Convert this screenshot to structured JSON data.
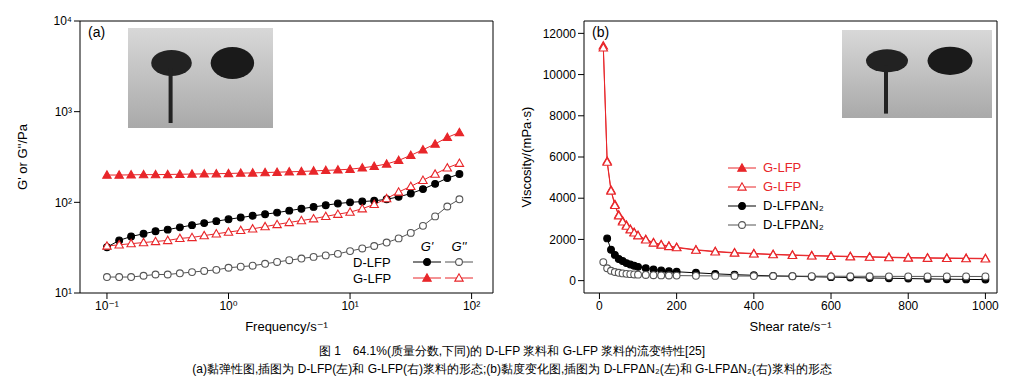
{
  "chart_data": [
    {
      "type": "line",
      "panel": "(a)",
      "x_label": "Frequency/s⁻¹",
      "y_label": "G' or G''/Pa",
      "log": true,
      "xlim": [
        0.06,
        150
      ],
      "xticks": [
        {
          "value": 0.1,
          "label": "10⁻¹"
        },
        {
          "value": 1,
          "label": "10⁰"
        },
        {
          "value": 10,
          "label": "10¹"
        },
        {
          "value": 100,
          "label": "10²"
        }
      ],
      "ylim": [
        10,
        10000
      ],
      "yticks": [
        {
          "value": 10,
          "label": "10¹"
        },
        {
          "value": 100,
          "label": "10²"
        },
        {
          "value": 1000,
          "label": "10³"
        },
        {
          "value": 10000,
          "label": "10⁴"
        }
      ],
      "legend_columns": [
        "G'",
        "G''"
      ],
      "x": [
        0.1,
        0.126,
        0.158,
        0.2,
        0.251,
        0.316,
        0.398,
        0.501,
        0.631,
        0.794,
        1,
        1.26,
        1.58,
        2,
        2.51,
        3.16,
        3.98,
        5.01,
        6.31,
        7.94,
        10,
        12.6,
        15.8,
        20,
        25.1,
        31.6,
        39.8,
        50.1,
        63.1,
        79.4
      ],
      "series": [
        {
          "name": "D-LFP",
          "modulus": "G'",
          "color": "#000000",
          "marker": "circle",
          "values": [
            32,
            38,
            42,
            45,
            48,
            50,
            53,
            56,
            59,
            62,
            65,
            68,
            71,
            74,
            77,
            81,
            85,
            89,
            93,
            97,
            100,
            102,
            104,
            108,
            115,
            125,
            140,
            160,
            185,
            205
          ]
        },
        {
          "name": "D-LFP",
          "modulus": "G''",
          "color": "#555555",
          "marker": "open_circle",
          "values": [
            15,
            15,
            15,
            15.5,
            16,
            16,
            16.5,
            17,
            17.5,
            18,
            19,
            19.5,
            20,
            21,
            22,
            23,
            24,
            25,
            26,
            27,
            29,
            31,
            33,
            36,
            40,
            46,
            55,
            70,
            90,
            108
          ]
        },
        {
          "name": "G-LFP",
          "modulus": "G'",
          "color": "#e8262a",
          "marker": "triangle",
          "values": [
            200,
            200,
            201,
            202,
            202,
            203,
            204,
            205,
            206,
            207,
            208,
            210,
            211,
            213,
            215,
            217,
            219,
            222,
            225,
            228,
            232,
            240,
            250,
            265,
            290,
            330,
            380,
            440,
            520,
            590
          ]
        },
        {
          "name": "G-LFP",
          "modulus": "G''",
          "color": "#e8262a",
          "marker": "open_triangle",
          "values": [
            33,
            34,
            35,
            36,
            37,
            38,
            40,
            41,
            43,
            45,
            47,
            49,
            51,
            54,
            57,
            60,
            63,
            66,
            70,
            74,
            78,
            85,
            95,
            110,
            130,
            150,
            175,
            205,
            240,
            270
          ]
        }
      ]
    },
    {
      "type": "line",
      "panel": "(b)",
      "x_label": "Shear rate/s⁻¹",
      "y_label": "Viscosity/(mPa·s)",
      "xlim": [
        -40,
        1030
      ],
      "xticks": [
        0,
        200,
        400,
        600,
        800,
        1000
      ],
      "ylim": [
        -600,
        12600
      ],
      "yticks": [
        0,
        2000,
        4000,
        6000,
        8000,
        10000,
        12000
      ],
      "x": [
        10,
        20,
        30,
        40,
        50,
        60,
        70,
        80,
        90,
        100,
        120,
        140,
        160,
        180,
        200,
        250,
        300,
        350,
        400,
        450,
        500,
        550,
        600,
        650,
        700,
        750,
        800,
        850,
        900,
        950,
        1000
      ],
      "series": [
        {
          "name": "G-LFP",
          "color": "#e8262a",
          "marker": "triangle",
          "values": [
            11400,
            5800,
            4400,
            3700,
            3200,
            2900,
            2700,
            2500,
            2350,
            2200,
            2000,
            1850,
            1750,
            1680,
            1620,
            1500,
            1420,
            1360,
            1320,
            1280,
            1250,
            1220,
            1200,
            1180,
            1160,
            1140,
            1120,
            1110,
            1100,
            1090,
            1080
          ]
        },
        {
          "name": "G-LFP",
          "color": "#e8262a",
          "marker": "open_triangle",
          "values": [
            11300,
            5750,
            4350,
            3650,
            3150,
            2850,
            2650,
            2470,
            2320,
            2180,
            1980,
            1830,
            1730,
            1660,
            1600,
            1480,
            1400,
            1340,
            1300,
            1260,
            1230,
            1200,
            1180,
            1160,
            1140,
            1120,
            1100,
            1090,
            1080,
            1070,
            1060
          ]
        },
        {
          "name": "D-LFPΔN₂",
          "color": "#000000",
          "marker": "circle",
          "values": [
            null,
            2050,
            1500,
            1250,
            1050,
            950,
            850,
            780,
            720,
            670,
            600,
            540,
            500,
            460,
            430,
            380,
            330,
            290,
            260,
            230,
            210,
            190,
            170,
            150,
            130,
            115,
            100,
            85,
            70,
            60,
            50
          ]
        },
        {
          "name": "D-LFPΔN₂",
          "color": "#555555",
          "marker": "open_circle",
          "values": [
            900,
            600,
            480,
            420,
            380,
            350,
            330,
            315,
            300,
            290,
            275,
            265,
            255,
            250,
            245,
            235,
            230,
            225,
            222,
            220,
            218,
            216,
            214,
            212,
            210,
            208,
            206,
            205,
            204,
            203,
            202
          ]
        }
      ]
    }
  ],
  "caption": [
    "图 1　64.1%(质量分数,下同)的 D-LFP 浆料和 G-LFP 浆料的流变特性[25]",
    "(a)黏弹性图,插图为 D-LFP(左)和 G-LFP(右)浆料的形态;(b)黏度变化图,插图为 D-LFPΔN₂(左)和 G-LFPΔN₂(右)浆料的形态"
  ]
}
